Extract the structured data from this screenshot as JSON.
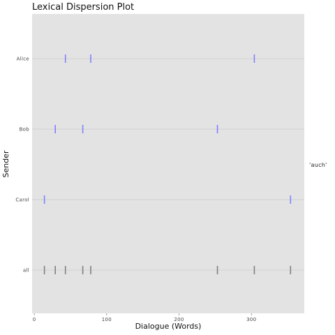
{
  "chart_data": {
    "type": "scatter",
    "title": "Lexical Dispersion Plot",
    "xlabel": "Dialogue (Words)",
    "ylabel": "Sender",
    "xlim": [
      -3,
      373
    ],
    "x_ticks": [
      0,
      100,
      200,
      300
    ],
    "categories": [
      "Alice",
      "Bob",
      "Carol",
      "all"
    ],
    "facet_label": "'auch'",
    "grid": true,
    "series": [
      {
        "category": "Alice",
        "color": "#8080ff",
        "values": [
          43,
          78,
          304
        ]
      },
      {
        "category": "Bob",
        "color": "#8080ff",
        "values": [
          29,
          67,
          253
        ]
      },
      {
        "category": "Carol",
        "color": "#8080ff",
        "values": [
          14,
          354
        ]
      },
      {
        "category": "all",
        "color": "#808080",
        "values": [
          14,
          29,
          43,
          67,
          78,
          253,
          304,
          354
        ]
      }
    ]
  },
  "colors": {
    "panel_background": "#e3e3e3",
    "gridline": "#d2d2d2",
    "sender_marker": "#8080ff",
    "all_marker": "#808080"
  }
}
